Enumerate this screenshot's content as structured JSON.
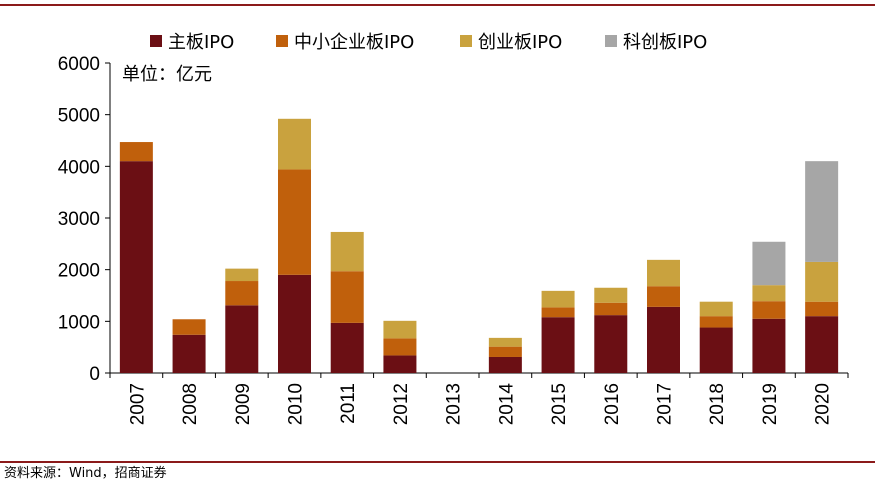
{
  "chart_data": {
    "type": "bar",
    "stacked": true,
    "unit_note": "单位：亿元",
    "categories": [
      "2007",
      "2008",
      "2009",
      "2010",
      "2011",
      "2012",
      "2013",
      "2014",
      "2015",
      "2016",
      "2017",
      "2018",
      "2019",
      "2020"
    ],
    "series": [
      {
        "name": "主板IPO",
        "color": "#6B0F14",
        "values": [
          4100,
          740,
          1310,
          1900,
          970,
          340,
          0,
          310,
          1080,
          1120,
          1280,
          880,
          1050,
          1100
        ]
      },
      {
        "name": "中小企业板IPO",
        "color": "#C0600C",
        "values": [
          370,
          300,
          470,
          2040,
          1000,
          330,
          0,
          200,
          190,
          240,
          400,
          220,
          340,
          280
        ]
      },
      {
        "name": "创业板IPO",
        "color": "#C9A23E",
        "values": [
          0,
          0,
          240,
          980,
          760,
          340,
          0,
          170,
          320,
          290,
          510,
          280,
          310,
          770
        ]
      },
      {
        "name": "科创板IPO",
        "color": "#A6A6A6",
        "values": [
          0,
          0,
          0,
          0,
          0,
          0,
          0,
          0,
          0,
          0,
          0,
          0,
          840,
          1950
        ]
      }
    ],
    "ylim": [
      0,
      6000
    ],
    "yticks": [
      0,
      1000,
      2000,
      3000,
      4000,
      5000,
      6000
    ],
    "grid": false,
    "legend_position": "top",
    "accent_color": "#8B1A1A"
  },
  "footer": {
    "source_text": "资料来源：Wind，招商证券"
  }
}
